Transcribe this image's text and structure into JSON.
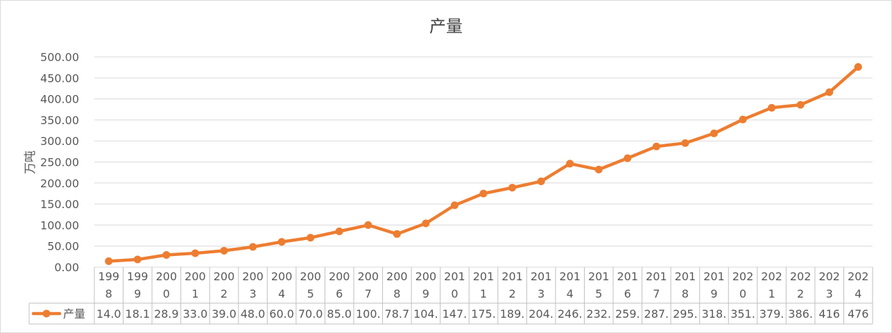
{
  "chart_data": {
    "type": "line",
    "title": "产量",
    "ylabel": "万吨",
    "xlabel": "",
    "ylim": [
      0,
      500
    ],
    "yticks": [
      0,
      50,
      100,
      150,
      200,
      250,
      300,
      350,
      400,
      450,
      500
    ],
    "ytick_labels": [
      "0.00",
      "50.00",
      "100.00",
      "150.00",
      "200.00",
      "250.00",
      "300.00",
      "350.00",
      "400.00",
      "450.00",
      "500.00"
    ],
    "grid": true,
    "legend": "data-table-left",
    "categories": [
      "1998",
      "1999",
      "2000",
      "2001",
      "2002",
      "2003",
      "2004",
      "2005",
      "2006",
      "2007",
      "2008",
      "2009",
      "2010",
      "2011",
      "2012",
      "2013",
      "2014",
      "2015",
      "2016",
      "2017",
      "2018",
      "2019",
      "2020",
      "2021",
      "2022",
      "2023",
      "2024"
    ],
    "category_lines": [
      [
        "199",
        "8"
      ],
      [
        "199",
        "9"
      ],
      [
        "200",
        "0"
      ],
      [
        "200",
        "1"
      ],
      [
        "200",
        "2"
      ],
      [
        "200",
        "3"
      ],
      [
        "200",
        "4"
      ],
      [
        "200",
        "5"
      ],
      [
        "200",
        "6"
      ],
      [
        "200",
        "7"
      ],
      [
        "200",
        "8"
      ],
      [
        "200",
        "9"
      ],
      [
        "201",
        "0"
      ],
      [
        "201",
        "1"
      ],
      [
        "201",
        "2"
      ],
      [
        "201",
        "3"
      ],
      [
        "201",
        "4"
      ],
      [
        "201",
        "5"
      ],
      [
        "201",
        "6"
      ],
      [
        "201",
        "7"
      ],
      [
        "201",
        "8"
      ],
      [
        "201",
        "9"
      ],
      [
        "202",
        "0"
      ],
      [
        "202",
        "1"
      ],
      [
        "202",
        "2"
      ],
      [
        "202",
        "3"
      ],
      [
        "202",
        "4"
      ]
    ],
    "series": [
      {
        "name": "产量",
        "color": "#ED7D31",
        "values": [
          14.0,
          18.1,
          28.9,
          33.0,
          39.0,
          48.0,
          60.0,
          70.0,
          85.0,
          100.0,
          78.7,
          104.0,
          147.0,
          175.0,
          189.0,
          204.0,
          246.0,
          232.0,
          259.0,
          287.0,
          295.0,
          318.0,
          351.0,
          379.0,
          386.0,
          416,
          476
        ],
        "table_labels": [
          "14.0",
          "18.1",
          "28.9",
          "33.0",
          "39.0",
          "48.0",
          "60.0",
          "70.0",
          "85.0",
          "100.",
          "78.7",
          "104.",
          "147.",
          "175.",
          "189.",
          "204.",
          "246.",
          "232.",
          "259.",
          "287.",
          "295.",
          "318.",
          "351.",
          "379.",
          "386.",
          "416",
          "476"
        ]
      }
    ]
  }
}
